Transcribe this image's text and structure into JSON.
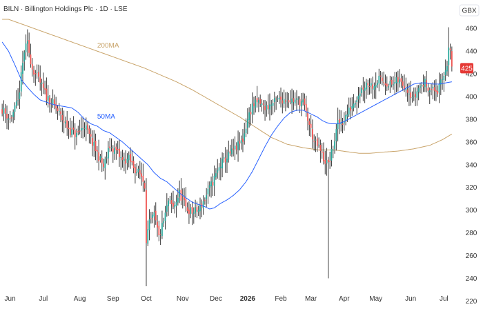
{
  "header": {
    "title": "BILN · Billington Holdings Plc · 1D · LSE",
    "currency": "GBX"
  },
  "colors": {
    "up": "#26a69a",
    "down": "#ef5350",
    "candle": "#3a3a3a",
    "ma50": "#2962ff",
    "ma200": "#c9a46a",
    "axis_text": "#333333",
    "badge_bg": "#e53935",
    "badge_text": "#ffffff"
  },
  "chart_data": {
    "type": "candlestick",
    "ylim": [
      216,
      468
    ],
    "y_ticks": [
      220,
      240,
      260,
      280,
      300,
      320,
      340,
      360,
      380,
      400,
      420,
      440,
      460
    ],
    "x_ticks": [
      {
        "label": "Jun",
        "index": 5,
        "bold": false
      },
      {
        "label": "Jul",
        "index": 26,
        "bold": false
      },
      {
        "label": "Aug",
        "index": 49,
        "bold": false
      },
      {
        "label": "Sep",
        "index": 70,
        "bold": false
      },
      {
        "label": "Oct",
        "index": 91,
        "bold": false
      },
      {
        "label": "Nov",
        "index": 114,
        "bold": false
      },
      {
        "label": "Dec",
        "index": 135,
        "bold": false
      },
      {
        "label": "2026",
        "index": 155,
        "bold": true
      },
      {
        "label": "Feb",
        "index": 176,
        "bold": false
      },
      {
        "label": "Mar",
        "index": 195,
        "bold": false
      },
      {
        "label": "Apr",
        "index": 216,
        "bold": false
      },
      {
        "label": "May",
        "index": 236,
        "bold": false
      },
      {
        "label": "Jun",
        "index": 258,
        "bold": false
      },
      {
        "label": "Jul",
        "index": 279,
        "bold": false
      }
    ],
    "last_price": 425,
    "ma_labels": {
      "ma50": "50MA",
      "ma200": "200MA"
    },
    "price_anchors": [
      [
        0,
        389
      ],
      [
        5,
        380
      ],
      [
        10,
        395
      ],
      [
        14,
        440
      ],
      [
        16,
        446
      ],
      [
        19,
        425
      ],
      [
        24,
        412
      ],
      [
        28,
        400
      ],
      [
        33,
        392
      ],
      [
        38,
        380
      ],
      [
        43,
        370
      ],
      [
        47,
        366
      ],
      [
        52,
        375
      ],
      [
        56,
        362
      ],
      [
        60,
        350
      ],
      [
        64,
        338
      ],
      [
        68,
        356
      ],
      [
        72,
        352
      ],
      [
        76,
        343
      ],
      [
        80,
        345
      ],
      [
        84,
        336
      ],
      [
        88,
        330
      ],
      [
        90,
        322
      ],
      [
        91,
        275
      ],
      [
        93,
        288
      ],
      [
        96,
        295
      ],
      [
        99,
        276
      ],
      [
        102,
        290
      ],
      [
        105,
        308
      ],
      [
        108,
        302
      ],
      [
        112,
        315
      ],
      [
        116,
        302
      ],
      [
        120,
        298
      ],
      [
        124,
        300
      ],
      [
        128,
        310
      ],
      [
        133,
        325
      ],
      [
        138,
        340
      ],
      [
        143,
        348
      ],
      [
        148,
        355
      ],
      [
        152,
        362
      ],
      [
        155,
        380
      ],
      [
        158,
        392
      ],
      [
        162,
        395
      ],
      [
        166,
        390
      ],
      [
        170,
        393
      ],
      [
        174,
        397
      ],
      [
        180,
        398
      ],
      [
        186,
        396
      ],
      [
        190,
        395
      ],
      [
        193,
        380
      ],
      [
        197,
        360
      ],
      [
        200,
        355
      ],
      [
        203,
        345
      ],
      [
        206,
        340
      ],
      [
        209,
        355
      ],
      [
        212,
        376
      ],
      [
        215,
        378
      ],
      [
        218,
        385
      ],
      [
        222,
        395
      ],
      [
        226,
        405
      ],
      [
        230,
        412
      ],
      [
        234,
        410
      ],
      [
        238,
        415
      ],
      [
        242,
        413
      ],
      [
        246,
        410
      ],
      [
        250,
        414
      ],
      [
        254,
        410
      ],
      [
        257,
        405
      ],
      [
        260,
        398
      ],
      [
        263,
        408
      ],
      [
        267,
        412
      ],
      [
        271,
        406
      ],
      [
        275,
        405
      ],
      [
        278,
        414
      ],
      [
        281,
        430
      ],
      [
        282,
        444
      ],
      [
        283,
        437
      ],
      [
        284,
        425
      ]
    ],
    "ma50_anchors": [
      [
        0,
        448
      ],
      [
        4,
        440
      ],
      [
        8,
        428
      ],
      [
        12,
        415
      ],
      [
        16,
        408
      ],
      [
        20,
        402
      ],
      [
        24,
        397
      ],
      [
        28,
        395
      ],
      [
        32,
        393
      ],
      [
        36,
        392
      ],
      [
        40,
        391
      ],
      [
        44,
        390
      ],
      [
        48,
        386
      ],
      [
        52,
        380
      ],
      [
        56,
        376
      ],
      [
        60,
        374
      ],
      [
        64,
        370
      ],
      [
        68,
        368
      ],
      [
        72,
        364
      ],
      [
        76,
        360
      ],
      [
        80,
        355
      ],
      [
        84,
        350
      ],
      [
        88,
        345
      ],
      [
        92,
        340
      ],
      [
        96,
        333
      ],
      [
        100,
        328
      ],
      [
        104,
        325
      ],
      [
        108,
        320
      ],
      [
        112,
        315
      ],
      [
        116,
        311
      ],
      [
        120,
        307
      ],
      [
        124,
        305
      ],
      [
        128,
        303
      ],
      [
        131,
        301
      ],
      [
        134,
        302
      ],
      [
        138,
        306
      ],
      [
        142,
        309
      ],
      [
        146,
        313
      ],
      [
        150,
        318
      ],
      [
        154,
        325
      ],
      [
        158,
        334
      ],
      [
        162,
        345
      ],
      [
        166,
        356
      ],
      [
        170,
        366
      ],
      [
        174,
        374
      ],
      [
        178,
        381
      ],
      [
        182,
        386
      ],
      [
        186,
        388
      ],
      [
        190,
        388
      ],
      [
        193,
        386
      ],
      [
        196,
        384
      ],
      [
        199,
        382
      ],
      [
        202,
        379
      ],
      [
        205,
        377
      ],
      [
        208,
        376
      ],
      [
        212,
        376
      ],
      [
        216,
        378
      ],
      [
        220,
        381
      ],
      [
        224,
        384
      ],
      [
        228,
        387
      ],
      [
        232,
        390
      ],
      [
        236,
        393
      ],
      [
        240,
        396
      ],
      [
        244,
        399
      ],
      [
        248,
        402
      ],
      [
        252,
        405
      ],
      [
        256,
        408
      ],
      [
        260,
        411
      ],
      [
        264,
        412
      ],
      [
        268,
        412
      ],
      [
        272,
        411
      ],
      [
        276,
        411
      ],
      [
        280,
        412
      ],
      [
        284,
        413
      ]
    ],
    "ma200_anchors": [
      [
        0,
        470
      ],
      [
        10,
        465
      ],
      [
        20,
        460
      ],
      [
        30,
        455
      ],
      [
        40,
        450
      ],
      [
        50,
        445
      ],
      [
        60,
        440
      ],
      [
        70,
        435
      ],
      [
        80,
        430
      ],
      [
        90,
        425
      ],
      [
        100,
        419
      ],
      [
        110,
        413
      ],
      [
        120,
        406
      ],
      [
        130,
        398
      ],
      [
        140,
        390
      ],
      [
        150,
        382
      ],
      [
        160,
        373
      ],
      [
        170,
        364
      ],
      [
        180,
        358
      ],
      [
        190,
        355
      ],
      [
        200,
        353
      ],
      [
        210,
        353
      ],
      [
        215,
        352
      ],
      [
        220,
        351
      ],
      [
        226,
        350
      ],
      [
        232,
        350
      ],
      [
        240,
        351
      ],
      [
        250,
        352
      ],
      [
        260,
        354
      ],
      [
        270,
        357
      ],
      [
        278,
        362
      ],
      [
        284,
        367
      ]
    ],
    "spikes": [
      {
        "index": 91,
        "low": 233
      },
      {
        "index": 206,
        "low": 240
      },
      {
        "index": 282,
        "high": 461
      }
    ]
  }
}
